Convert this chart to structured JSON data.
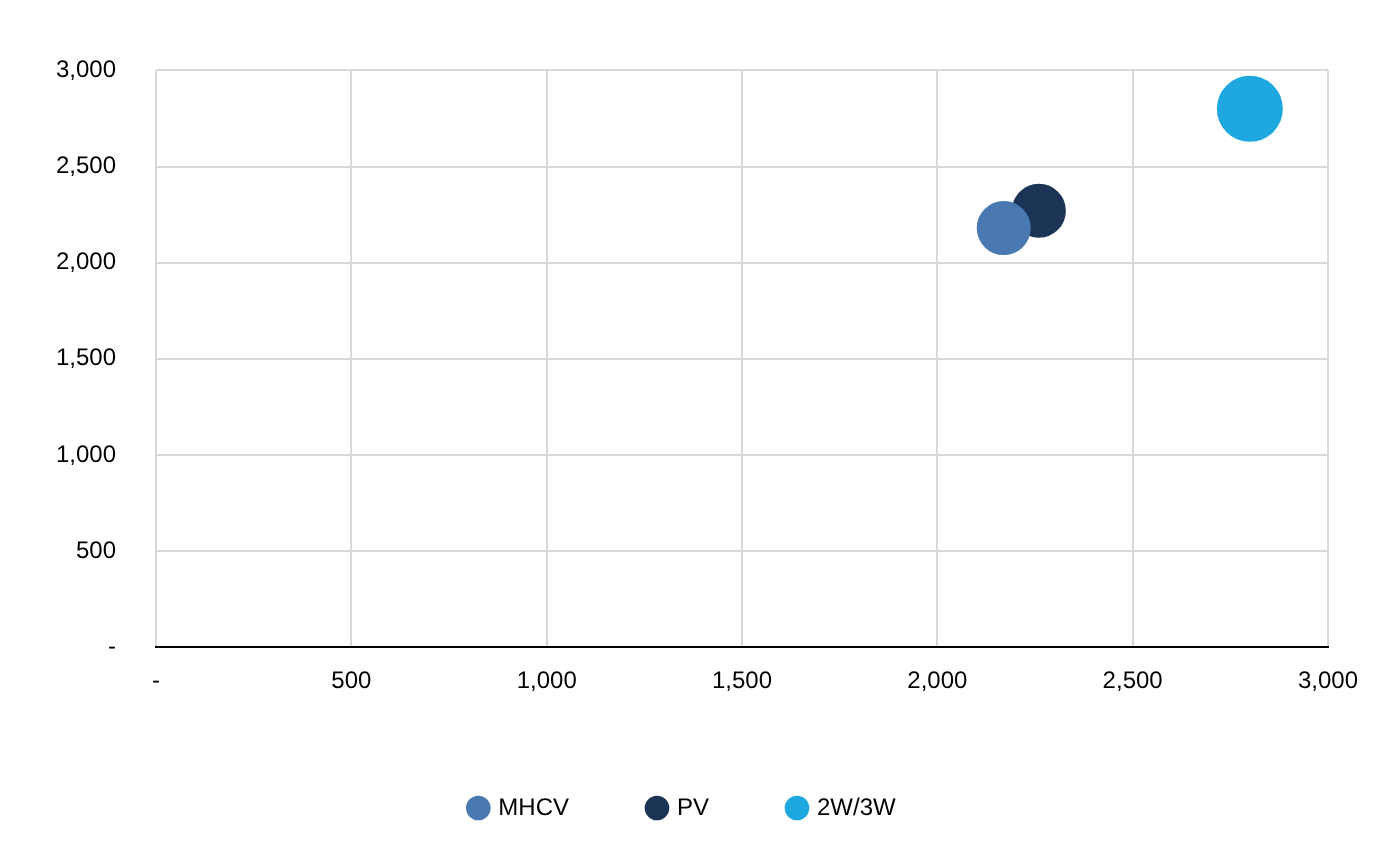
{
  "chart_data": {
    "type": "bubble",
    "relative": false,
    "series": [
      {
        "name": "MHCV",
        "color": "#4a78b0",
        "x": [
          2170
        ],
        "values": [
          2180
        ],
        "sizes": [
          0.66
        ]
      },
      {
        "name": "PV",
        "color": "#1c3557",
        "x": [
          2260
        ],
        "values": [
          2270
        ],
        "sizes": [
          0.66
        ]
      },
      {
        "name": "2W/3W",
        "color": "#1fa8e0",
        "x": [
          2800
        ],
        "values": [
          2800
        ],
        "sizes": [
          1
        ]
      }
    ],
    "xlim": [
      0,
      3000
    ],
    "xticks": [
      {
        "value": 0,
        "label": "-"
      },
      {
        "value": 500,
        "label": "500"
      },
      {
        "value": 1000,
        "label": "1,000"
      },
      {
        "value": 1500,
        "label": "1,500"
      },
      {
        "value": 2000,
        "label": "2,000"
      },
      {
        "value": 2500,
        "label": "2,500"
      },
      {
        "value": 3000,
        "label": "3,000"
      }
    ],
    "ylim": [
      0,
      3000
    ],
    "yticks": [
      {
        "value": 0,
        "label": "-"
      },
      {
        "value": 500,
        "label": "500"
      },
      {
        "value": 1000,
        "label": "1,000"
      },
      {
        "value": 1500,
        "label": "1,500"
      },
      {
        "value": 2000,
        "label": "2,000"
      },
      {
        "value": 2500,
        "label": "2,500"
      },
      {
        "value": 3000,
        "label": "3,000"
      }
    ],
    "grid": true,
    "legend": "bottom"
  }
}
